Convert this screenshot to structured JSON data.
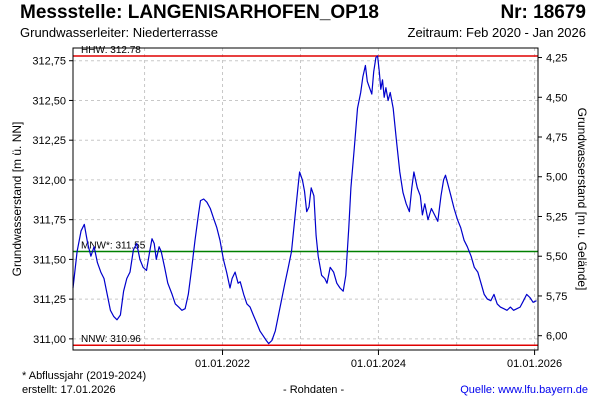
{
  "header": {
    "title": "Messstelle: LANGENISARHOFEN_OP18",
    "number": "Nr: 18679",
    "aquifer": "Grundwasserleiter:   Niederterrasse",
    "period": "Zeitraum: Feb 2020 - Jan 2026"
  },
  "footer": {
    "note": "* Abflussjahr (2019-2024)",
    "created": "erstellt:  17.01.2026",
    "raw": "- Rohdaten -",
    "source": "Quelle:  www.lfu.bayern.de"
  },
  "colors": {
    "series": "#0000cc",
    "hhw": "#e00000",
    "nnw": "#e00000",
    "mnw": "#008000",
    "grid": "#c8c8c8"
  },
  "chart_data": {
    "type": "line",
    "ylabel": "Grundwasserstand [m ü. NN]",
    "ylabel_right": "Grundwasserstand [m u. Gelände]",
    "ylim": [
      310.93,
      312.83
    ],
    "ylim_right_depth": [
      6.09,
      4.19
    ],
    "xlim": [
      "2020-02-01",
      "2026-01-17"
    ],
    "yticks": [
      "311,00",
      "311,25",
      "311,50",
      "311,75",
      "312,00",
      "312,25",
      "312,50",
      "312,75"
    ],
    "yticks_values": [
      311.0,
      311.25,
      311.5,
      311.75,
      312.0,
      312.25,
      312.5,
      312.75
    ],
    "yticks_right": [
      "4,25",
      "4,50",
      "4,75",
      "5,00",
      "5,25",
      "5,50",
      "5,75",
      "6,00"
    ],
    "yticks_right_values": [
      4.25,
      4.5,
      4.75,
      5.0,
      5.25,
      5.5,
      5.75,
      6.0
    ],
    "xticks": [
      "01.01.2022",
      "01.01.2024",
      "01.01.2026"
    ],
    "xticks_values": [
      "2022-01-01",
      "2024-01-01",
      "2026-01-01"
    ],
    "x_minor_grid": [
      "2021-01-01",
      "2023-01-01",
      "2025-01-01"
    ],
    "reference_lines": [
      {
        "label": "HHW: 312.78",
        "value": 312.78,
        "color": "#e00000"
      },
      {
        "label": "MNW*: 311.55",
        "value": 311.55,
        "color": "#008000"
      },
      {
        "label": "NNW: 310.96",
        "value": 310.96,
        "color": "#e00000"
      }
    ],
    "grid": true,
    "series": [
      {
        "points": [
          [
            "2020-02-01",
            311.32
          ],
          [
            "2020-02-20",
            311.55
          ],
          [
            "2020-03-10",
            311.68
          ],
          [
            "2020-03-25",
            311.72
          ],
          [
            "2020-04-10",
            311.6
          ],
          [
            "2020-04-25",
            311.52
          ],
          [
            "2020-05-10",
            311.58
          ],
          [
            "2020-05-25",
            311.48
          ],
          [
            "2020-06-10",
            311.42
          ],
          [
            "2020-06-25",
            311.38
          ],
          [
            "2020-07-10",
            311.28
          ],
          [
            "2020-07-25",
            311.18
          ],
          [
            "2020-08-10",
            311.14
          ],
          [
            "2020-08-25",
            311.12
          ],
          [
            "2020-09-10",
            311.15
          ],
          [
            "2020-09-25",
            311.3
          ],
          [
            "2020-10-10",
            311.38
          ],
          [
            "2020-10-25",
            311.42
          ],
          [
            "2020-11-10",
            311.56
          ],
          [
            "2020-11-25",
            311.6
          ],
          [
            "2020-12-10",
            311.5
          ],
          [
            "2020-12-25",
            311.45
          ],
          [
            "2021-01-10",
            311.43
          ],
          [
            "2021-01-25",
            311.55
          ],
          [
            "2021-02-05",
            311.63
          ],
          [
            "2021-02-15",
            311.6
          ],
          [
            "2021-02-25",
            311.5
          ],
          [
            "2021-03-10",
            311.58
          ],
          [
            "2021-03-20",
            311.55
          ],
          [
            "2021-04-05",
            311.45
          ],
          [
            "2021-04-20",
            311.35
          ],
          [
            "2021-05-10",
            311.28
          ],
          [
            "2021-05-25",
            311.22
          ],
          [
            "2021-06-10",
            311.2
          ],
          [
            "2021-06-25",
            311.18
          ],
          [
            "2021-07-10",
            311.19
          ],
          [
            "2021-07-25",
            311.28
          ],
          [
            "2021-08-10",
            311.45
          ],
          [
            "2021-08-25",
            311.62
          ],
          [
            "2021-09-10",
            311.78
          ],
          [
            "2021-09-20",
            311.87
          ],
          [
            "2021-10-05",
            311.88
          ],
          [
            "2021-10-20",
            311.86
          ],
          [
            "2021-11-05",
            311.82
          ],
          [
            "2021-11-20",
            311.76
          ],
          [
            "2021-12-05",
            311.7
          ],
          [
            "2021-12-20",
            311.62
          ],
          [
            "2022-01-05",
            311.5
          ],
          [
            "2022-01-20",
            311.42
          ],
          [
            "2022-02-05",
            311.32
          ],
          [
            "2022-02-15",
            311.38
          ],
          [
            "2022-03-01",
            311.42
          ],
          [
            "2022-03-15",
            311.35
          ],
          [
            "2022-03-25",
            311.36
          ],
          [
            "2022-04-10",
            311.28
          ],
          [
            "2022-04-25",
            311.22
          ],
          [
            "2022-05-10",
            311.2
          ],
          [
            "2022-05-25",
            311.15
          ],
          [
            "2022-06-10",
            311.1
          ],
          [
            "2022-06-25",
            311.05
          ],
          [
            "2022-07-10",
            311.02
          ],
          [
            "2022-07-25",
            310.99
          ],
          [
            "2022-08-05",
            310.97
          ],
          [
            "2022-08-20",
            310.99
          ],
          [
            "2022-09-05",
            311.05
          ],
          [
            "2022-09-20",
            311.15
          ],
          [
            "2022-10-05",
            311.25
          ],
          [
            "2022-10-20",
            311.35
          ],
          [
            "2022-11-05",
            311.45
          ],
          [
            "2022-11-20",
            311.55
          ],
          [
            "2022-12-05",
            311.75
          ],
          [
            "2022-12-20",
            311.95
          ],
          [
            "2022-12-28",
            312.05
          ],
          [
            "2023-01-10",
            312.0
          ],
          [
            "2023-01-20",
            311.93
          ],
          [
            "2023-01-30",
            311.8
          ],
          [
            "2023-02-10",
            311.83
          ],
          [
            "2023-02-20",
            311.95
          ],
          [
            "2023-03-05",
            311.9
          ],
          [
            "2023-03-15",
            311.65
          ],
          [
            "2023-03-25",
            311.52
          ],
          [
            "2023-04-10",
            311.4
          ],
          [
            "2023-04-25",
            311.38
          ],
          [
            "2023-05-05",
            311.35
          ],
          [
            "2023-05-20",
            311.45
          ],
          [
            "2023-06-05",
            311.42
          ],
          [
            "2023-06-20",
            311.35
          ],
          [
            "2023-07-05",
            311.32
          ],
          [
            "2023-07-20",
            311.3
          ],
          [
            "2023-08-01",
            311.4
          ],
          [
            "2023-08-15",
            311.7
          ],
          [
            "2023-08-25",
            311.95
          ],
          [
            "2023-09-10",
            312.2
          ],
          [
            "2023-09-25",
            312.45
          ],
          [
            "2023-10-10",
            312.55
          ],
          [
            "2023-10-20",
            312.65
          ],
          [
            "2023-11-01",
            312.72
          ],
          [
            "2023-11-10",
            312.62
          ],
          [
            "2023-11-20",
            312.58
          ],
          [
            "2023-12-01",
            312.54
          ],
          [
            "2023-12-10",
            312.68
          ],
          [
            "2023-12-20",
            312.77
          ],
          [
            "2023-12-28",
            312.78
          ],
          [
            "2024-01-05",
            312.68
          ],
          [
            "2024-01-12",
            312.57
          ],
          [
            "2024-01-20",
            312.63
          ],
          [
            "2024-01-28",
            312.52
          ],
          [
            "2024-02-05",
            312.58
          ],
          [
            "2024-02-15",
            312.5
          ],
          [
            "2024-02-25",
            312.55
          ],
          [
            "2024-03-10",
            312.45
          ],
          [
            "2024-03-25",
            312.25
          ],
          [
            "2024-04-10",
            312.05
          ],
          [
            "2024-04-25",
            311.92
          ],
          [
            "2024-05-10",
            311.85
          ],
          [
            "2024-05-25",
            311.8
          ],
          [
            "2024-06-05",
            311.95
          ],
          [
            "2024-06-15",
            312.05
          ],
          [
            "2024-07-01",
            311.95
          ],
          [
            "2024-07-15",
            311.9
          ],
          [
            "2024-07-25",
            311.78
          ],
          [
            "2024-08-05",
            311.85
          ],
          [
            "2024-08-20",
            311.75
          ],
          [
            "2024-09-05",
            311.82
          ],
          [
            "2024-09-20",
            311.78
          ],
          [
            "2024-10-05",
            311.74
          ],
          [
            "2024-10-20",
            311.9
          ],
          [
            "2024-11-01",
            312.0
          ],
          [
            "2024-11-10",
            312.03
          ],
          [
            "2024-11-20",
            311.98
          ],
          [
            "2024-12-05",
            311.9
          ],
          [
            "2024-12-20",
            311.82
          ],
          [
            "2025-01-05",
            311.75
          ],
          [
            "2025-01-20",
            311.7
          ],
          [
            "2025-02-05",
            311.62
          ],
          [
            "2025-02-20",
            311.58
          ],
          [
            "2025-03-10",
            311.52
          ],
          [
            "2025-03-25",
            311.45
          ],
          [
            "2025-04-10",
            311.42
          ],
          [
            "2025-04-25",
            311.35
          ],
          [
            "2025-05-10",
            311.28
          ],
          [
            "2025-05-25",
            311.25
          ],
          [
            "2025-06-10",
            311.24
          ],
          [
            "2025-06-25",
            311.28
          ],
          [
            "2025-07-10",
            311.22
          ],
          [
            "2025-07-25",
            311.2
          ],
          [
            "2025-08-10",
            311.19
          ],
          [
            "2025-08-25",
            311.18
          ],
          [
            "2025-09-10",
            311.2
          ],
          [
            "2025-09-25",
            311.18
          ],
          [
            "2025-10-10",
            311.19
          ],
          [
            "2025-10-25",
            311.2
          ],
          [
            "2025-11-10",
            311.24
          ],
          [
            "2025-11-25",
            311.28
          ],
          [
            "2025-12-10",
            311.26
          ],
          [
            "2025-12-25",
            311.23
          ],
          [
            "2026-01-10",
            311.24
          ]
        ]
      }
    ]
  }
}
